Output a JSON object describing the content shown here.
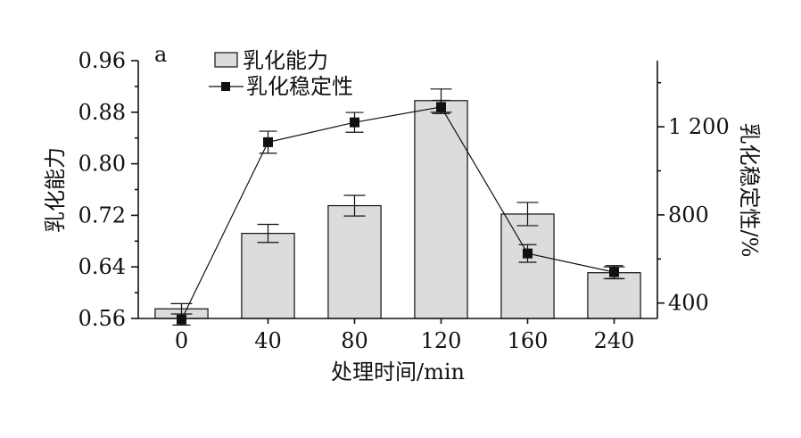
{
  "chart_data": {
    "type": "bar",
    "panel_label": "a",
    "xlabel": "处理时间/min",
    "categories": [
      "0",
      "40",
      "80",
      "120",
      "160",
      "240"
    ],
    "y_left": {
      "label": "乳化能力",
      "range": [
        0.56,
        0.96
      ],
      "ticks": [
        "0.56",
        "0.64",
        "0.72",
        "0.80",
        "0.88",
        "0.96"
      ]
    },
    "y_right": {
      "label": "乳化稳定性/%",
      "range": [
        330,
        1500
      ],
      "ticks": [
        "400",
        "800",
        "1 200"
      ],
      "tick_values": [
        400,
        800,
        1200
      ]
    },
    "series": [
      {
        "name": "乳化能力",
        "kind": "bar",
        "axis": "left",
        "values": [
          0.575,
          0.692,
          0.735,
          0.898,
          0.722,
          0.631
        ],
        "errors": [
          0.008,
          0.014,
          0.016,
          0.018,
          0.018,
          0.009
        ],
        "color": "#dcdcdc"
      },
      {
        "name": "乳化稳定性",
        "kind": "line",
        "axis": "right",
        "values": [
          325,
          1130,
          1220,
          1290,
          625,
          540
        ],
        "errors": [
          25,
          50,
          45,
          30,
          40,
          30
        ],
        "color": "#111111"
      }
    ],
    "legend_position": "top-left",
    "grid": false
  }
}
